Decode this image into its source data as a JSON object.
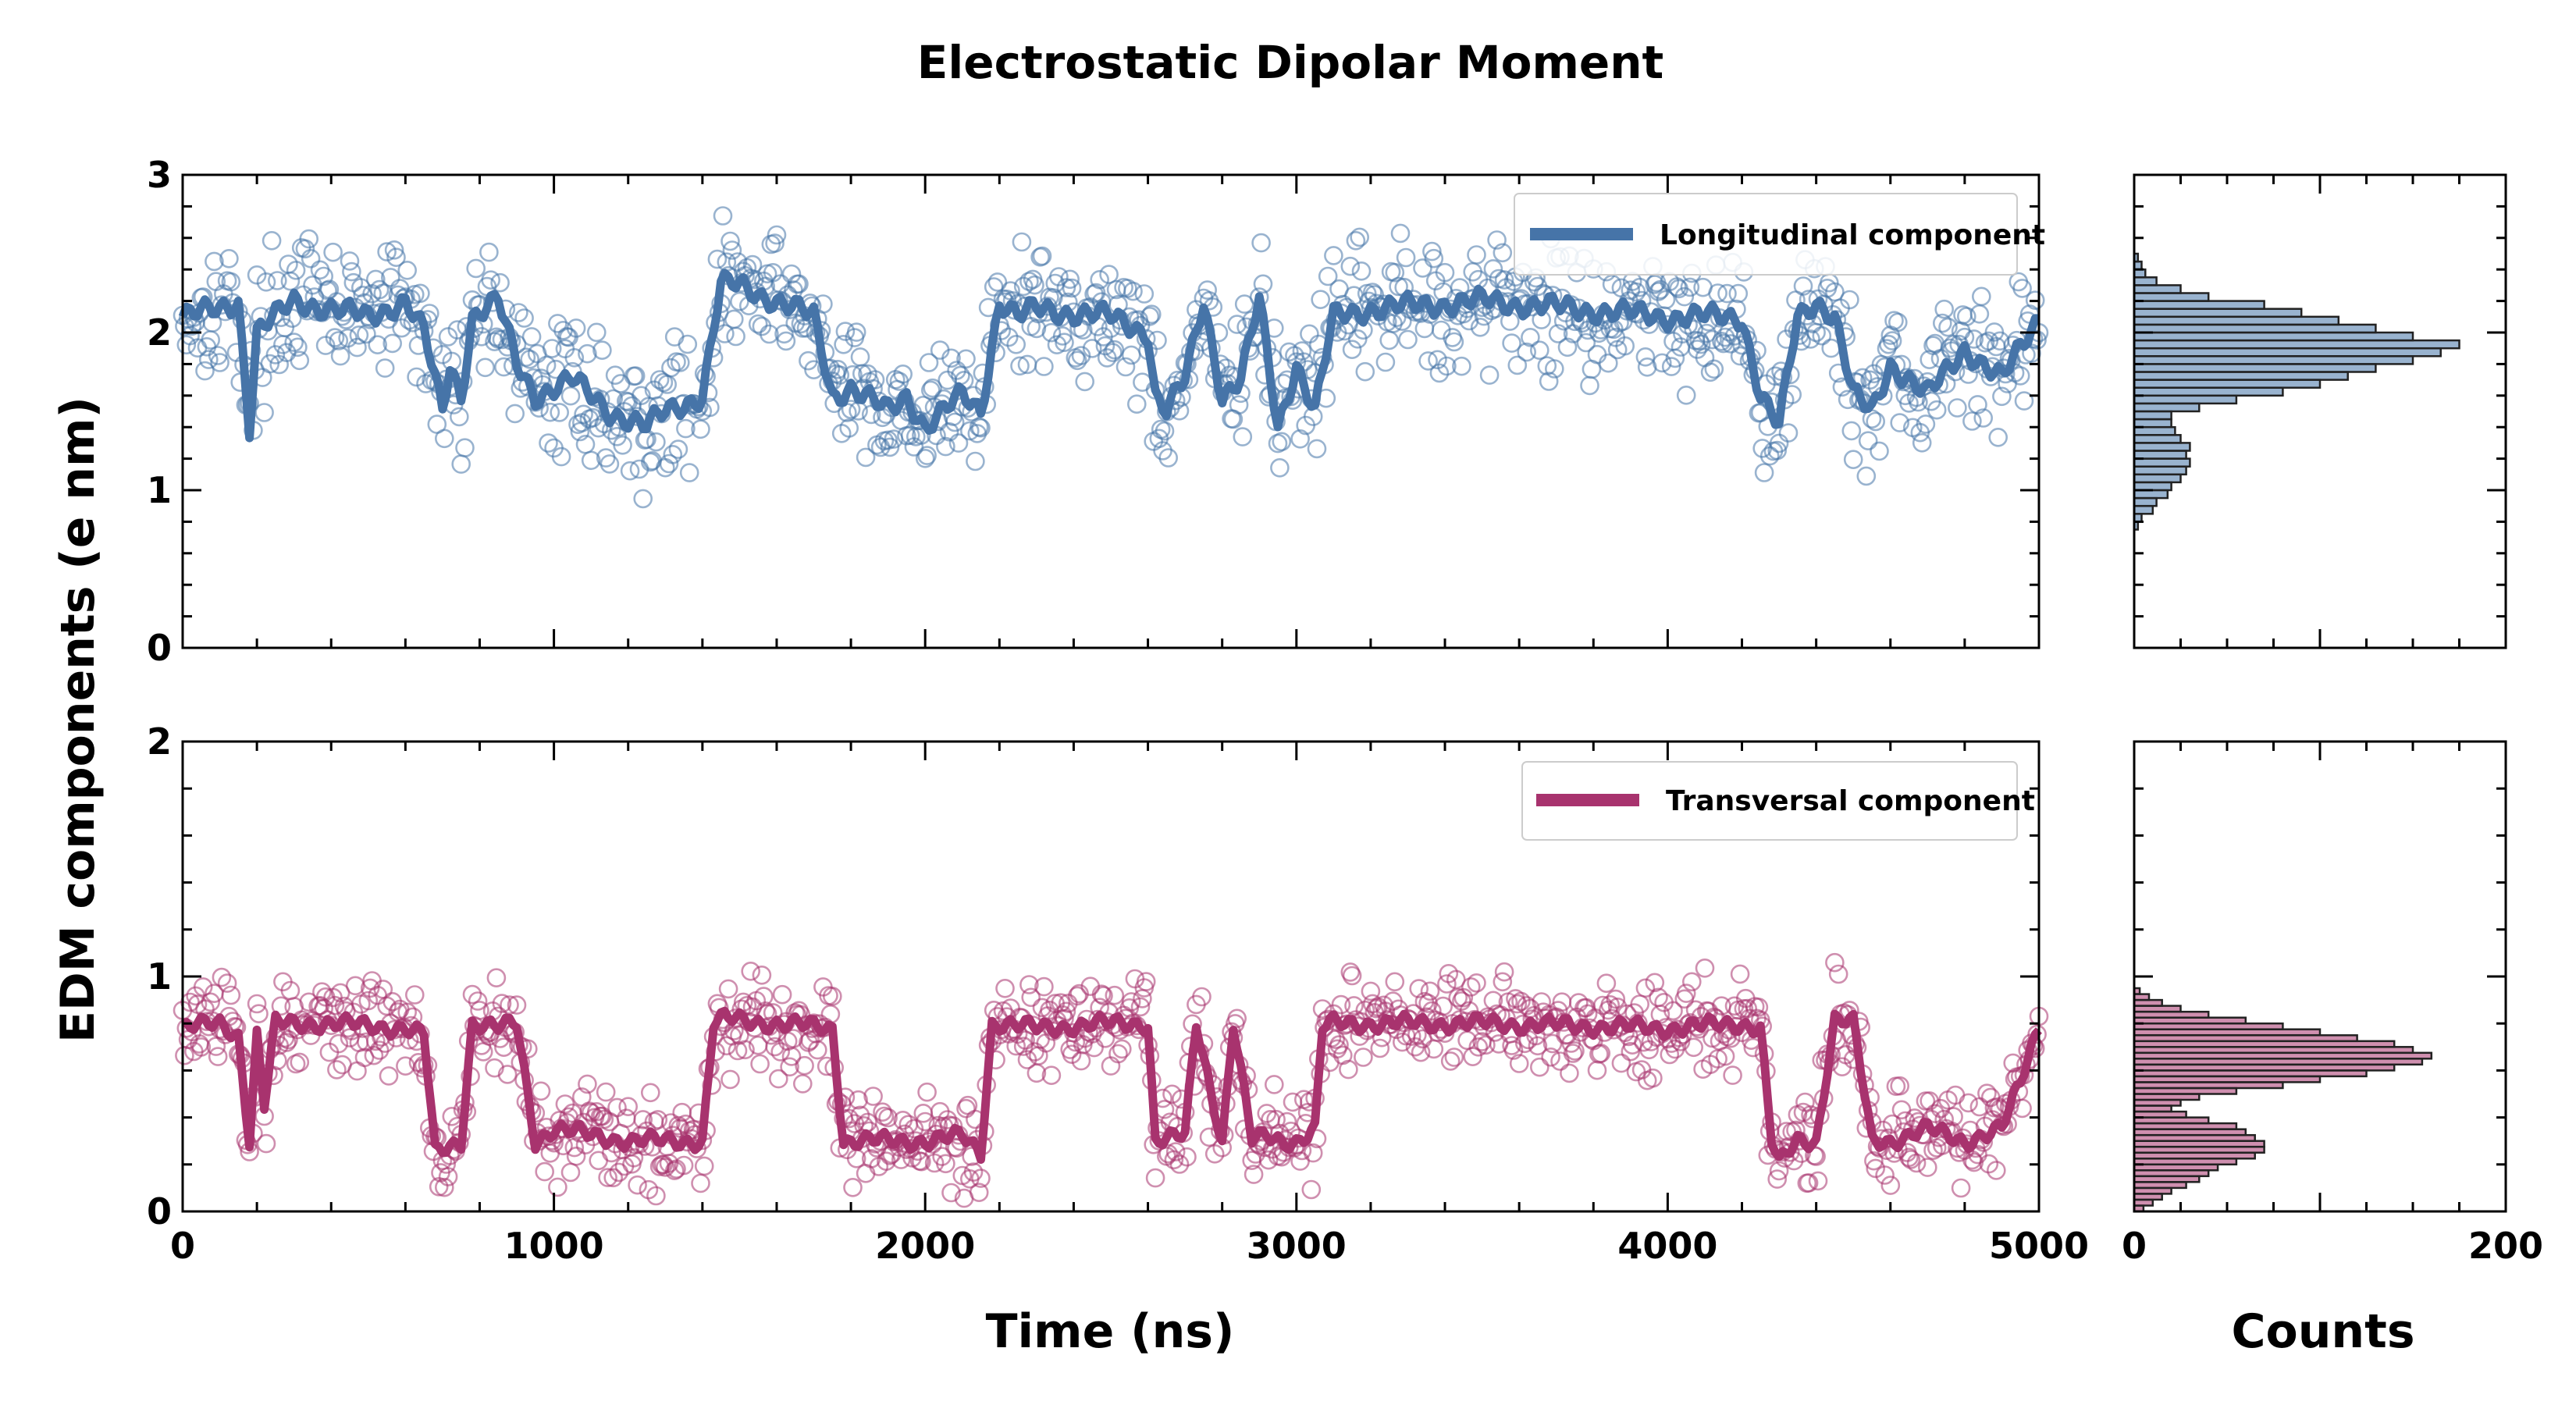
{
  "chart_data": {
    "type": "scatter",
    "title": "Electrostatic Dipolar Moment",
    "ylabel": "EDM components (e nm)",
    "xlabel": "Time (ns)",
    "hist_xlabel": "Counts",
    "colors": {
      "longitudinal": "#4674a8",
      "transversal": "#a8336e"
    },
    "panels": [
      {
        "id": "longitudinal",
        "legend": "Longitudinal component",
        "legend_position": "top-right",
        "xlim": [
          0,
          5000
        ],
        "ylim": [
          0,
          3
        ],
        "yticks": [
          "0",
          "1",
          "2",
          "3"
        ],
        "xticks": [],
        "mean_series": {
          "x": [
            0,
            100,
            150,
            180,
            200,
            250,
            300,
            400,
            500,
            550,
            600,
            650,
            700,
            720,
            750,
            780,
            850,
            900,
            950,
            1050,
            1150,
            1250,
            1300,
            1400,
            1450,
            1500,
            1600,
            1700,
            1750,
            1800,
            1900,
            1950,
            2000,
            2050,
            2100,
            2150,
            2200,
            2250,
            2300,
            2500,
            2600,
            2620,
            2650,
            2700,
            2750,
            2800,
            2850,
            2900,
            2950,
            3000,
            3050,
            3100,
            3200,
            3500,
            4000,
            4200,
            4250,
            4300,
            4350,
            4400,
            4450,
            4500,
            4550,
            4600,
            4700,
            4800,
            4900,
            5000
          ],
          "y": [
            2.1,
            2.15,
            2.2,
            1.4,
            2.0,
            2.1,
            2.2,
            2.15,
            2.1,
            2.15,
            2.2,
            2.0,
            1.5,
            1.8,
            1.6,
            2.1,
            2.2,
            1.8,
            1.6,
            1.7,
            1.5,
            1.4,
            1.5,
            1.6,
            2.3,
            2.3,
            2.2,
            2.1,
            1.6,
            1.65,
            1.5,
            1.6,
            1.4,
            1.5,
            1.6,
            1.5,
            2.2,
            2.1,
            2.15,
            2.1,
            2.0,
            1.6,
            1.5,
            1.7,
            2.2,
            1.6,
            1.7,
            2.2,
            1.4,
            1.8,
            1.5,
            2.1,
            2.15,
            2.2,
            2.1,
            2.1,
            1.6,
            1.4,
            2.1,
            2.2,
            2.1,
            1.6,
            1.5,
            1.8,
            1.6,
            1.9,
            1.7,
            2.1
          ]
        },
        "scatter_noise": 0.2,
        "hist": {
          "xlim": [
            0,
            200
          ],
          "xticks": [],
          "bin_start": 0.75,
          "bin_width": 0.05,
          "counts": [
            2,
            4,
            10,
            12,
            18,
            20,
            25,
            28,
            30,
            28,
            30,
            25,
            22,
            20,
            20,
            35,
            55,
            80,
            100,
            115,
            130,
            150,
            165,
            175,
            150,
            130,
            110,
            90,
            70,
            40,
            25,
            12,
            6,
            4,
            2
          ]
        }
      },
      {
        "id": "transversal",
        "legend": "Transversal component",
        "legend_position": "top-right",
        "xlim": [
          0,
          5000
        ],
        "ylim": [
          0,
          2
        ],
        "yticks": [
          "0",
          "1",
          "2"
        ],
        "xticks": [
          "0",
          "1000",
          "2000",
          "3000",
          "4000",
          "5000"
        ],
        "mean_series": {
          "x": [
            0,
            100,
            150,
            180,
            200,
            220,
            250,
            400,
            600,
            650,
            680,
            750,
            780,
            850,
            900,
            950,
            1000,
            1200,
            1400,
            1430,
            1460,
            1600,
            1750,
            1780,
            1850,
            2000,
            2100,
            2150,
            2180,
            2200,
            2300,
            2500,
            2600,
            2620,
            2700,
            2730,
            2800,
            2830,
            2880,
            2920,
            2960,
            3000,
            3050,
            3070,
            3100,
            3500,
            4000,
            4200,
            4250,
            4280,
            4300,
            4350,
            4400,
            4450,
            4500,
            4550,
            4570,
            4600,
            4700,
            4800,
            4900,
            4950,
            5000
          ],
          "y": [
            0.78,
            0.8,
            0.75,
            0.3,
            0.75,
            0.45,
            0.8,
            0.8,
            0.78,
            0.75,
            0.25,
            0.3,
            0.8,
            0.78,
            0.8,
            0.3,
            0.35,
            0.3,
            0.3,
            0.8,
            0.82,
            0.8,
            0.78,
            0.3,
            0.3,
            0.3,
            0.32,
            0.25,
            0.8,
            0.8,
            0.78,
            0.8,
            0.8,
            0.3,
            0.32,
            0.8,
            0.3,
            0.8,
            0.3,
            0.32,
            0.3,
            0.3,
            0.35,
            0.78,
            0.8,
            0.8,
            0.78,
            0.8,
            0.78,
            0.3,
            0.2,
            0.3,
            0.3,
            0.82,
            0.8,
            0.3,
            0.3,
            0.3,
            0.35,
            0.3,
            0.35,
            0.55,
            0.8
          ]
        },
        "scatter_noise": 0.1,
        "hist": {
          "xlim": [
            0,
            200
          ],
          "xticks": [
            "0",
            "200"
          ],
          "bin_start": 0.0,
          "bin_width": 0.025,
          "counts": [
            5,
            10,
            15,
            20,
            28,
            35,
            40,
            45,
            55,
            65,
            70,
            70,
            65,
            60,
            55,
            40,
            28,
            20,
            25,
            35,
            55,
            80,
            100,
            125,
            140,
            155,
            160,
            150,
            140,
            120,
            100,
            80,
            60,
            40,
            25,
            15,
            8,
            3
          ]
        }
      }
    ]
  }
}
